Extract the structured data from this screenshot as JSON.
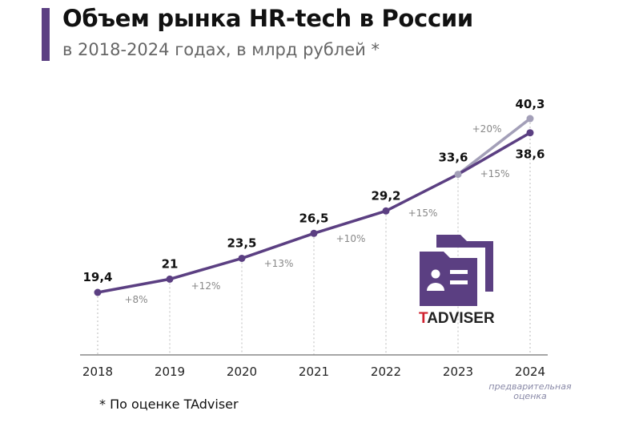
{
  "title": "Объем рынка HR-tech в России",
  "subtitle": "в 2018-2024 годах, в млрд рублей *",
  "footnote": "* По оценке TAdviser",
  "logo_text": "TADVISER",
  "colors": {
    "main_line": "#5b3f82",
    "estimate_line": "#a39fb8",
    "accent": "#5b3f82",
    "logo_t": "#d0202e"
  },
  "chart_data": {
    "type": "line",
    "categories": [
      "2018",
      "2019",
      "2020",
      "2021",
      "2022",
      "2023",
      "2024"
    ],
    "x_sublabel_2024": "предварительная оценка",
    "series": [
      {
        "values": [
          19.4,
          21,
          23.5,
          26.5,
          29.2,
          33.6,
          38.6
        ],
        "labels": [
          "19,4",
          "21",
          "23,5",
          "26,5",
          "29,2",
          "33,6",
          "38,6"
        ]
      },
      {
        "values": [
          null,
          null,
          null,
          null,
          null,
          33.6,
          40.3
        ],
        "labels": [
          "",
          "",
          "",
          "",
          "",
          "",
          "40,3"
        ]
      }
    ],
    "growth_labels": [
      "+8%",
      "+12%",
      "+13%",
      "+10%",
      "+15%",
      "+15%"
    ],
    "estimate_growth_label": "+20%",
    "grid": false
  }
}
